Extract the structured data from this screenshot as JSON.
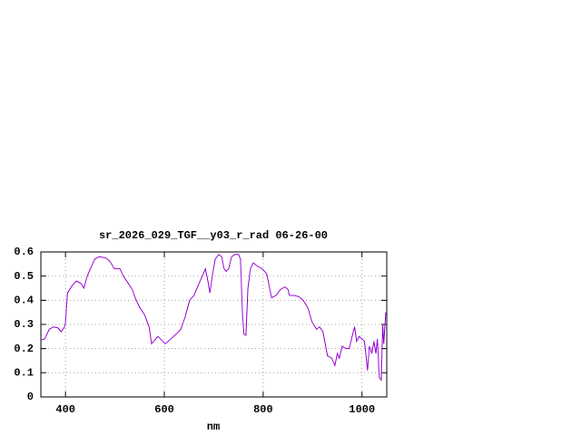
{
  "chart_data": {
    "type": "line",
    "title": "sr_2026_029_TGF__y03_r_rad 06-26-00",
    "x_label": "nm",
    "color": "#9400d3",
    "grid": true,
    "xlim": [
      350,
      1050
    ],
    "xticks": [
      400,
      600,
      800,
      1000
    ],
    "ylim": [
      0,
      0.6
    ],
    "yticks": [
      0,
      0.1,
      0.2,
      0.3,
      0.4,
      0.5,
      0.6
    ],
    "x": [
      349,
      358,
      367,
      376,
      385,
      391,
      398,
      400,
      404,
      413,
      422,
      431,
      437,
      444,
      450,
      459,
      468,
      482,
      490,
      499,
      510,
      517,
      527,
      536,
      541,
      550,
      560,
      569,
      574,
      587,
      602,
      624,
      633,
      642,
      651,
      660,
      670,
      679,
      683,
      688,
      692,
      697,
      703,
      710,
      716,
      721,
      725,
      730,
      736,
      743,
      750,
      754,
      758,
      761,
      765,
      769,
      774,
      780,
      789,
      798,
      807,
      817,
      826,
      835,
      844,
      850,
      853,
      862,
      872,
      881,
      890,
      899,
      908,
      914,
      921,
      930,
      939,
      945,
      950,
      954,
      960,
      967,
      974,
      980,
      985,
      989,
      994,
      1000,
      1005,
      1011,
      1015,
      1020,
      1024,
      1028,
      1031,
      1035,
      1039,
      1042,
      1044,
      1048
    ],
    "values": [
      0.235,
      0.24,
      0.28,
      0.29,
      0.285,
      0.27,
      0.29,
      0.31,
      0.43,
      0.46,
      0.48,
      0.47,
      0.45,
      0.5,
      0.53,
      0.57,
      0.58,
      0.575,
      0.56,
      0.53,
      0.53,
      0.5,
      0.47,
      0.44,
      0.41,
      0.37,
      0.34,
      0.29,
      0.22,
      0.25,
      0.22,
      0.26,
      0.28,
      0.33,
      0.4,
      0.42,
      0.47,
      0.51,
      0.53,
      0.48,
      0.43,
      0.5,
      0.57,
      0.59,
      0.58,
      0.53,
      0.52,
      0.53,
      0.58,
      0.59,
      0.59,
      0.57,
      0.35,
      0.26,
      0.255,
      0.45,
      0.53,
      0.555,
      0.54,
      0.53,
      0.51,
      0.41,
      0.42,
      0.445,
      0.455,
      0.445,
      0.42,
      0.42,
      0.415,
      0.4,
      0.37,
      0.31,
      0.28,
      0.29,
      0.27,
      0.17,
      0.16,
      0.13,
      0.18,
      0.16,
      0.21,
      0.2,
      0.2,
      0.25,
      0.29,
      0.23,
      0.25,
      0.24,
      0.23,
      0.11,
      0.21,
      0.18,
      0.23,
      0.18,
      0.24,
      0.08,
      0.07,
      0.3,
      0.22,
      0.35
    ]
  }
}
